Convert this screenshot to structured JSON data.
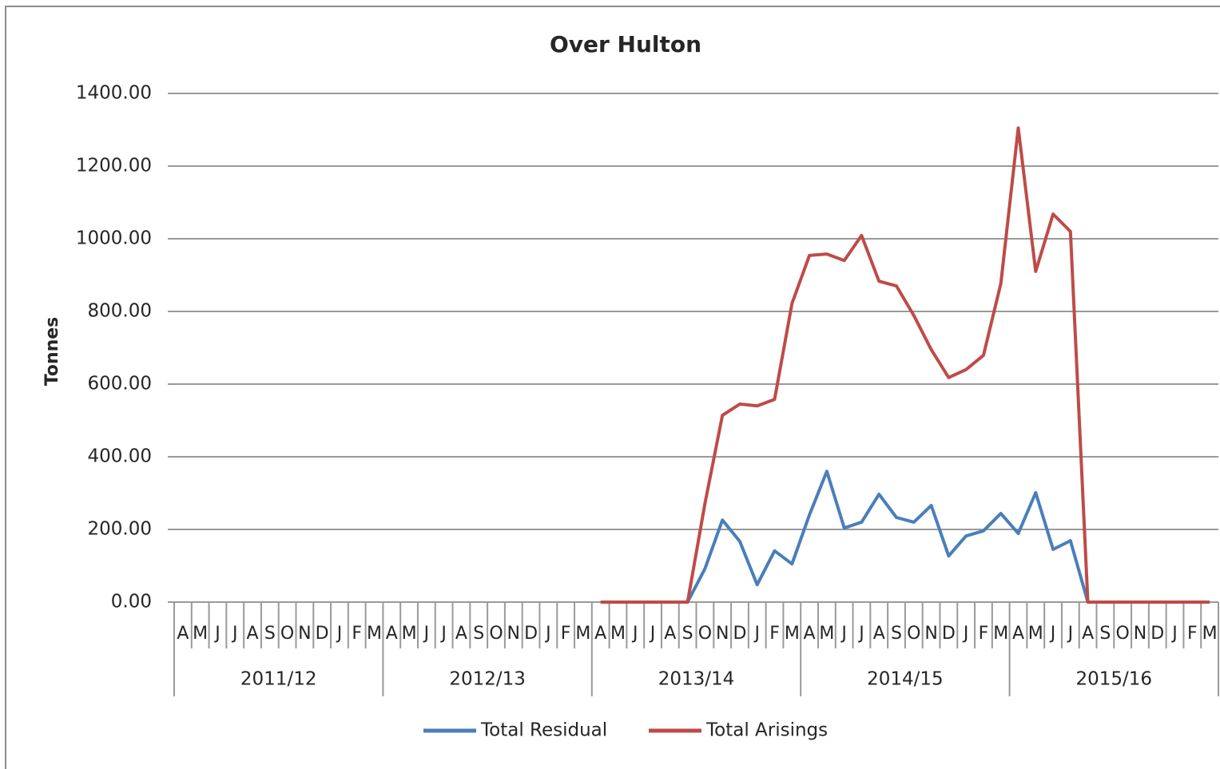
{
  "chart_data": {
    "type": "line",
    "title": "Over Hulton",
    "y_label": "Tonnes",
    "categories": [
      "A",
      "M",
      "J",
      "J",
      "A",
      "S",
      "O",
      "N",
      "D",
      "J",
      "F",
      "M",
      "A",
      "M",
      "J",
      "J",
      "A",
      "S",
      "O",
      "N",
      "D",
      "J",
      "F",
      "M",
      "A",
      "M",
      "J",
      "J",
      "A",
      "S",
      "O",
      "N",
      "D",
      "J",
      "F",
      "M",
      "A",
      "M",
      "J",
      "J",
      "A",
      "S",
      "O",
      "N",
      "D",
      "J",
      "F",
      "M",
      "A",
      "M",
      "J",
      "J",
      "A",
      "S",
      "O",
      "N",
      "D",
      "J",
      "F",
      "M"
    ],
    "category_groups": [
      "2011/12",
      "2012/13",
      "2013/14",
      "2014/15",
      "2015/16"
    ],
    "series": [
      {
        "name": "Total Residual",
        "color": "#4a7ebb",
        "values": [
          null,
          null,
          null,
          null,
          null,
          null,
          null,
          null,
          null,
          null,
          null,
          null,
          null,
          null,
          null,
          null,
          null,
          null,
          null,
          null,
          null,
          null,
          null,
          null,
          null,
          null,
          null,
          null,
          null,
          0,
          92,
          226,
          167,
          48,
          141,
          105,
          240,
          360,
          204,
          220,
          297,
          233,
          220,
          266,
          127,
          182,
          196,
          244,
          189,
          301,
          145,
          169,
          0,
          null,
          null,
          null,
          null,
          null,
          null,
          null
        ]
      },
      {
        "name": "Total Arisings",
        "color": "#be4b48",
        "values": [
          null,
          null,
          null,
          null,
          null,
          null,
          null,
          null,
          null,
          null,
          null,
          null,
          null,
          null,
          null,
          null,
          null,
          null,
          null,
          null,
          null,
          null,
          null,
          null,
          0,
          0,
          0,
          0,
          0,
          0,
          272,
          514,
          545,
          540,
          558,
          822,
          954,
          958,
          940,
          1009,
          883,
          870,
          789,
          695,
          618,
          640,
          679,
          877,
          1305,
          910,
          1068,
          1020,
          0,
          0,
          0,
          0,
          0,
          0,
          0,
          0
        ]
      }
    ],
    "ylim": [
      0,
      1400
    ],
    "yticks": [
      {
        "value": 0,
        "label": "0.00"
      },
      {
        "value": 200,
        "label": "200.00"
      },
      {
        "value": 400,
        "label": "400.00"
      },
      {
        "value": 600,
        "label": "600.00"
      },
      {
        "value": 800,
        "label": "800.00"
      },
      {
        "value": 1000,
        "label": "1000.00"
      },
      {
        "value": 1200,
        "label": "1200.00"
      },
      {
        "value": 1400,
        "label": "1400.00"
      }
    ],
    "grid": true,
    "legend": "bottom"
  }
}
